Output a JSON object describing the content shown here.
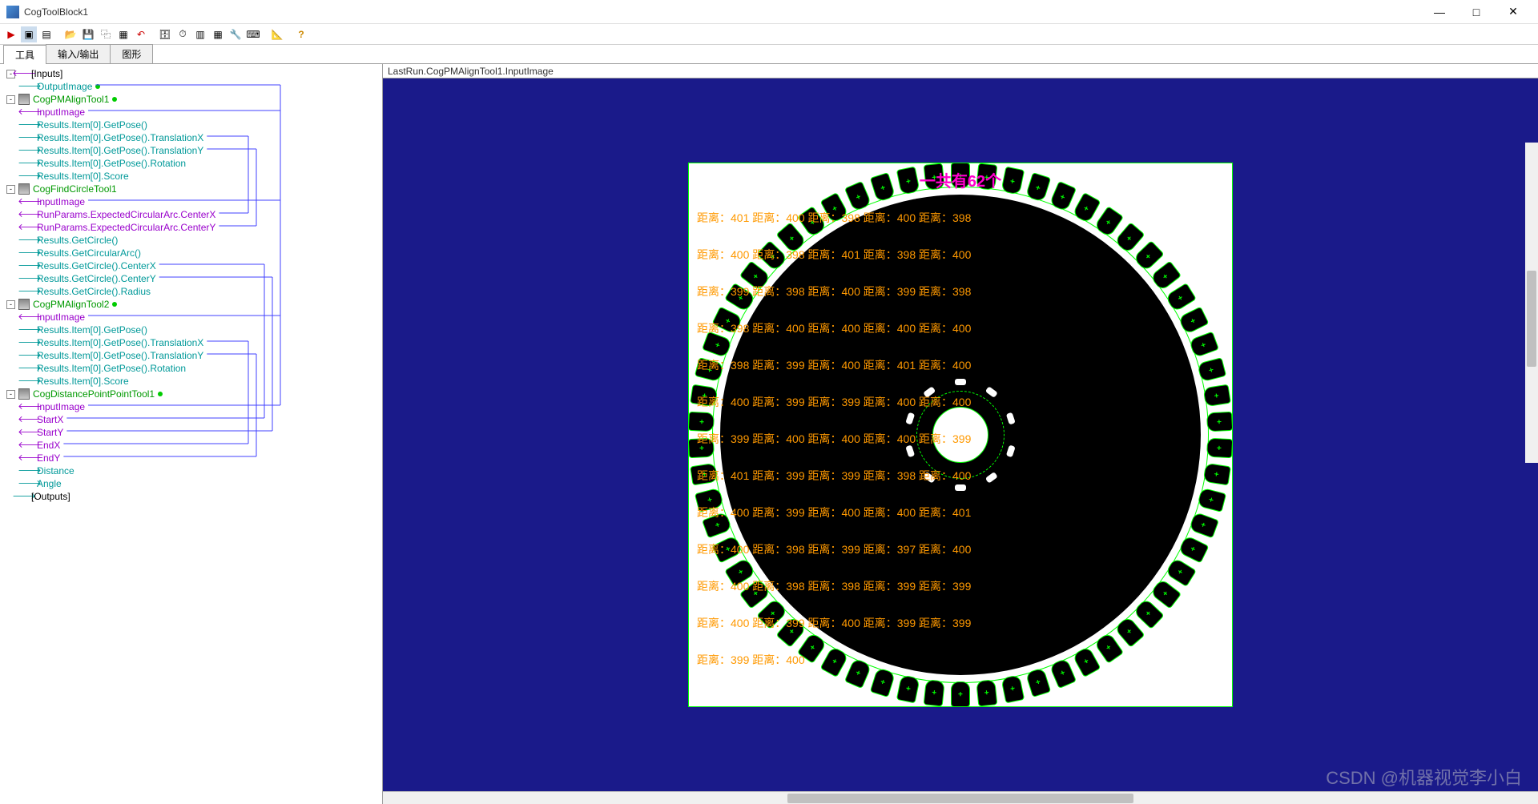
{
  "window": {
    "title": "CogToolBlock1"
  },
  "tabs": {
    "t1": "工具",
    "t2": "输入/输出",
    "t3": "图形"
  },
  "rightHeader": "LastRun.CogPMAlignTool1.InputImage",
  "countLabel": "一共有62个",
  "watermark": "CSDN @机器视觉李小白",
  "gear": {
    "teeth": 62,
    "hubMarks": 10
  },
  "distRows": [
    [
      "距离：401",
      "距离：400",
      "距离：398",
      "距离：400",
      "距离：398"
    ],
    [
      "距离：400",
      "距离：398",
      "距离：401",
      "距离：398",
      "距离：400"
    ],
    [
      "距离：399",
      "距离：398",
      "距离：400",
      "距离：399",
      "距离：398"
    ],
    [
      "距离：398",
      "距离：400",
      "距离：400",
      "距离：400",
      "距离：400"
    ],
    [
      "距离：398",
      "距离：399",
      "距离：400",
      "距离：401",
      "距离：400"
    ],
    [
      "距离：400",
      "距离：399",
      "距离：399",
      "距离：400",
      "距离：400"
    ],
    [
      "距离：399",
      "距离：400",
      "距离：400",
      "距离：400",
      "距离：399"
    ],
    [
      "距离：401",
      "距离：399",
      "距离：399",
      "距离：398",
      "距离：400"
    ],
    [
      "距离：400",
      "距离：399",
      "距离：400",
      "距离：400",
      "距离：401"
    ],
    [
      "距离：400",
      "距离：398",
      "距离：399",
      "距离：397",
      "距离：400"
    ],
    [
      "距离：400",
      "距离：398",
      "距离：398",
      "距离：399",
      "距离：399"
    ],
    [
      "距离：400",
      "距离：399",
      "距离：400",
      "距离：399",
      "距离：399"
    ],
    [
      "距离：399",
      "距离：400"
    ]
  ],
  "tree": [
    {
      "indent": 0,
      "exp": "-",
      "arr": "←",
      "arrc": "purple",
      "label": "[Inputs]",
      "cls": "lbl-black"
    },
    {
      "indent": 1,
      "arr": "→",
      "arrc": "teal",
      "label": "OutputImage",
      "cls": "lbl-teal",
      "dot": true,
      "wireOut": true
    },
    {
      "indent": 0,
      "exp": "-",
      "tool": true,
      "label": "CogPMAlignTool1",
      "cls": "lbl-green",
      "dot": true
    },
    {
      "indent": 1,
      "arr": "←",
      "arrc": "purple",
      "label": "InputImage",
      "cls": "lbl-purple",
      "wireIn": true
    },
    {
      "indent": 1,
      "arr": "→",
      "arrc": "teal",
      "label": "Results.Item[0].GetPose()",
      "cls": "lbl-teal"
    },
    {
      "indent": 1,
      "arr": "→",
      "arrc": "teal",
      "label": "Results.Item[0].GetPose().TranslationX",
      "cls": "lbl-teal",
      "wireOut": true
    },
    {
      "indent": 1,
      "arr": "→",
      "arrc": "teal",
      "label": "Results.Item[0].GetPose().TranslationY",
      "cls": "lbl-teal",
      "wireOut": true
    },
    {
      "indent": 1,
      "arr": "→",
      "arrc": "teal",
      "label": "Results.Item[0].GetPose().Rotation",
      "cls": "lbl-teal"
    },
    {
      "indent": 1,
      "arr": "→",
      "arrc": "teal",
      "label": "Results.Item[0].Score",
      "cls": "lbl-teal"
    },
    {
      "indent": 0,
      "exp": "-",
      "tool": true,
      "label": "CogFindCircleTool1",
      "cls": "lbl-green"
    },
    {
      "indent": 1,
      "arr": "←",
      "arrc": "purple",
      "label": "InputImage",
      "cls": "lbl-purple",
      "wireIn": true
    },
    {
      "indent": 1,
      "arr": "←",
      "arrc": "purple",
      "label": "RunParams.ExpectedCircularArc.CenterX",
      "cls": "lbl-purple",
      "wireIn": true
    },
    {
      "indent": 1,
      "arr": "←",
      "arrc": "purple",
      "label": "RunParams.ExpectedCircularArc.CenterY",
      "cls": "lbl-purple",
      "wireIn": true
    },
    {
      "indent": 1,
      "arr": "→",
      "arrc": "teal",
      "label": "Results.GetCircle()",
      "cls": "lbl-teal"
    },
    {
      "indent": 1,
      "arr": "→",
      "arrc": "teal",
      "label": "Results.GetCircularArc()",
      "cls": "lbl-teal"
    },
    {
      "indent": 1,
      "arr": "→",
      "arrc": "teal",
      "label": "Results.GetCircle().CenterX",
      "cls": "lbl-teal",
      "wireOut": true
    },
    {
      "indent": 1,
      "arr": "→",
      "arrc": "teal",
      "label": "Results.GetCircle().CenterY",
      "cls": "lbl-teal",
      "wireOut": true
    },
    {
      "indent": 1,
      "arr": "→",
      "arrc": "teal",
      "label": "Results.GetCircle().Radius",
      "cls": "lbl-teal"
    },
    {
      "indent": 0,
      "exp": "-",
      "tool": true,
      "label": "CogPMAlignTool2",
      "cls": "lbl-green",
      "dot": true
    },
    {
      "indent": 1,
      "arr": "←",
      "arrc": "purple",
      "label": "InputImage",
      "cls": "lbl-purple",
      "wireIn": true
    },
    {
      "indent": 1,
      "arr": "→",
      "arrc": "teal",
      "label": "Results.Item[0].GetPose()",
      "cls": "lbl-teal"
    },
    {
      "indent": 1,
      "arr": "→",
      "arrc": "teal",
      "label": "Results.Item[0].GetPose().TranslationX",
      "cls": "lbl-teal",
      "wireOut": true
    },
    {
      "indent": 1,
      "arr": "→",
      "arrc": "teal",
      "label": "Results.Item[0].GetPose().TranslationY",
      "cls": "lbl-teal",
      "wireOut": true
    },
    {
      "indent": 1,
      "arr": "→",
      "arrc": "teal",
      "label": "Results.Item[0].GetPose().Rotation",
      "cls": "lbl-teal"
    },
    {
      "indent": 1,
      "arr": "→",
      "arrc": "teal",
      "label": "Results.Item[0].Score",
      "cls": "lbl-teal"
    },
    {
      "indent": 0,
      "exp": "-",
      "tool": true,
      "label": "CogDistancePointPointTool1",
      "cls": "lbl-green",
      "dot": true
    },
    {
      "indent": 1,
      "arr": "←",
      "arrc": "purple",
      "label": "InputImage",
      "cls": "lbl-purple",
      "wireIn": true
    },
    {
      "indent": 1,
      "arr": "←",
      "arrc": "purple",
      "label": "StartX",
      "cls": "lbl-purple",
      "wireIn": true
    },
    {
      "indent": 1,
      "arr": "←",
      "arrc": "purple",
      "label": "StartY",
      "cls": "lbl-purple",
      "wireIn": true
    },
    {
      "indent": 1,
      "arr": "←",
      "arrc": "purple",
      "label": "EndX",
      "cls": "lbl-purple",
      "wireIn": true
    },
    {
      "indent": 1,
      "arr": "←",
      "arrc": "purple",
      "label": "EndY",
      "cls": "lbl-purple",
      "wireIn": true
    },
    {
      "indent": 1,
      "arr": "→",
      "arrc": "teal",
      "label": "Distance",
      "cls": "lbl-teal"
    },
    {
      "indent": 1,
      "arr": "→",
      "arrc": "teal",
      "label": "Angle",
      "cls": "lbl-teal"
    },
    {
      "indent": 0,
      "arr": "→",
      "arrc": "teal",
      "bracket": true,
      "label": "[Outputs]",
      "cls": "lbl-black"
    }
  ],
  "colors": {
    "wire": "#4040ff",
    "green": "#00ff00",
    "orange": "#ff9900",
    "magenta": "#ff00cc",
    "navy": "#1a1a8a"
  },
  "toolbar": {
    "run": "▶",
    "step": "▣",
    "view": "▤",
    "sep": "",
    "open": "📂",
    "save": "💾",
    "copy": "⿻",
    "paste": "▦",
    "undo": "↶",
    "db": "🗄",
    "clock": "⏱",
    "grid": "▥",
    "table": "▦",
    "wrench": "🔧",
    "num": "⌨",
    "ruler": "📐",
    "help": "?"
  }
}
